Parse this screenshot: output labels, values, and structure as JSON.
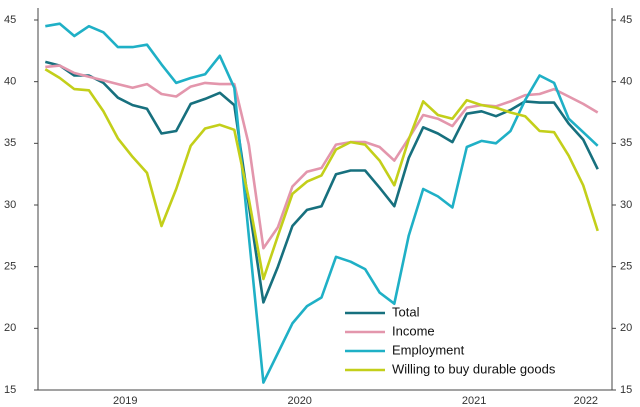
{
  "chart_data": {
    "type": "line",
    "x": [
      2019.042,
      2019.125,
      2019.208,
      2019.292,
      2019.375,
      2019.458,
      2019.542,
      2019.625,
      2019.708,
      2019.792,
      2019.875,
      2019.958,
      2020.042,
      2020.125,
      2020.208,
      2020.292,
      2020.375,
      2020.458,
      2020.542,
      2020.625,
      2020.708,
      2020.792,
      2020.875,
      2020.958,
      2021.042,
      2021.125,
      2021.208,
      2021.292,
      2021.375,
      2021.458,
      2021.542,
      2021.625,
      2021.708,
      2021.792,
      2021.875,
      2021.958,
      2022.042,
      2022.125,
      2022.208
    ],
    "xlim": [
      2019.0,
      2022.29
    ],
    "xticks": [
      {
        "value": 2019.5,
        "label": "2019"
      },
      {
        "value": 2020.5,
        "label": "2020"
      },
      {
        "value": 2021.5,
        "label": "2021"
      },
      {
        "value": 2022.14,
        "label": "2022"
      }
    ],
    "ylim": [
      15,
      45
    ],
    "yticks": [
      15,
      20,
      25,
      30,
      35,
      40,
      45
    ],
    "y2lim": [
      15,
      45
    ],
    "y2ticks": [
      15,
      20,
      25,
      30,
      35,
      40,
      45
    ],
    "legend": "bottom-center",
    "series": [
      {
        "name": "Total",
        "color": "#17707e",
        "values": [
          41.6,
          41.3,
          40.5,
          40.5,
          39.9,
          38.7,
          38.1,
          37.8,
          35.8,
          36.0,
          38.2,
          38.6,
          39.1,
          38.1,
          30.0,
          22.1,
          25.0,
          28.3,
          29.6,
          29.9,
          32.5,
          32.8,
          32.8,
          31.4,
          29.9,
          33.8,
          36.3,
          35.8,
          35.1,
          37.4,
          37.6,
          37.2,
          37.7,
          38.4,
          38.3,
          38.3,
          36.6,
          35.3,
          32.9
        ]
      },
      {
        "name": "Income",
        "color": "#e396ac",
        "values": [
          41.2,
          41.3,
          40.7,
          40.4,
          40.1,
          39.8,
          39.5,
          39.8,
          39.0,
          38.8,
          39.6,
          39.9,
          39.8,
          39.8,
          34.9,
          26.5,
          28.2,
          31.5,
          32.7,
          33.0,
          34.9,
          35.1,
          35.1,
          34.7,
          33.6,
          35.4,
          37.3,
          37.0,
          36.4,
          37.9,
          38.1,
          38.0,
          38.4,
          38.9,
          39.0,
          39.4,
          38.8,
          38.2,
          37.5
        ]
      },
      {
        "name": "Employment",
        "color": "#1fb0c6",
        "values": [
          44.5,
          44.7,
          43.7,
          44.5,
          44.0,
          42.8,
          42.8,
          43.0,
          41.4,
          39.9,
          40.3,
          40.6,
          42.1,
          39.5,
          27.5,
          15.6,
          18.0,
          20.4,
          21.8,
          22.5,
          25.8,
          25.4,
          24.8,
          22.9,
          22.0,
          27.5,
          31.3,
          30.7,
          29.8,
          34.7,
          35.2,
          35.0,
          36.0,
          38.5,
          40.5,
          39.9,
          37.0,
          35.9,
          34.8
        ]
      },
      {
        "name": "Willing to buy durable goods",
        "color": "#c3cf1a",
        "values": [
          41.0,
          40.3,
          39.4,
          39.3,
          37.6,
          35.4,
          33.9,
          32.6,
          28.3,
          31.3,
          34.8,
          36.2,
          36.5,
          36.1,
          30.5,
          24.0,
          27.5,
          30.9,
          31.9,
          32.4,
          34.5,
          35.1,
          34.9,
          33.6,
          31.6,
          35.3,
          38.4,
          37.3,
          37.0,
          38.5,
          38.1,
          37.9,
          37.5,
          37.2,
          36.0,
          35.9,
          34.0,
          31.6,
          27.9
        ]
      }
    ]
  }
}
